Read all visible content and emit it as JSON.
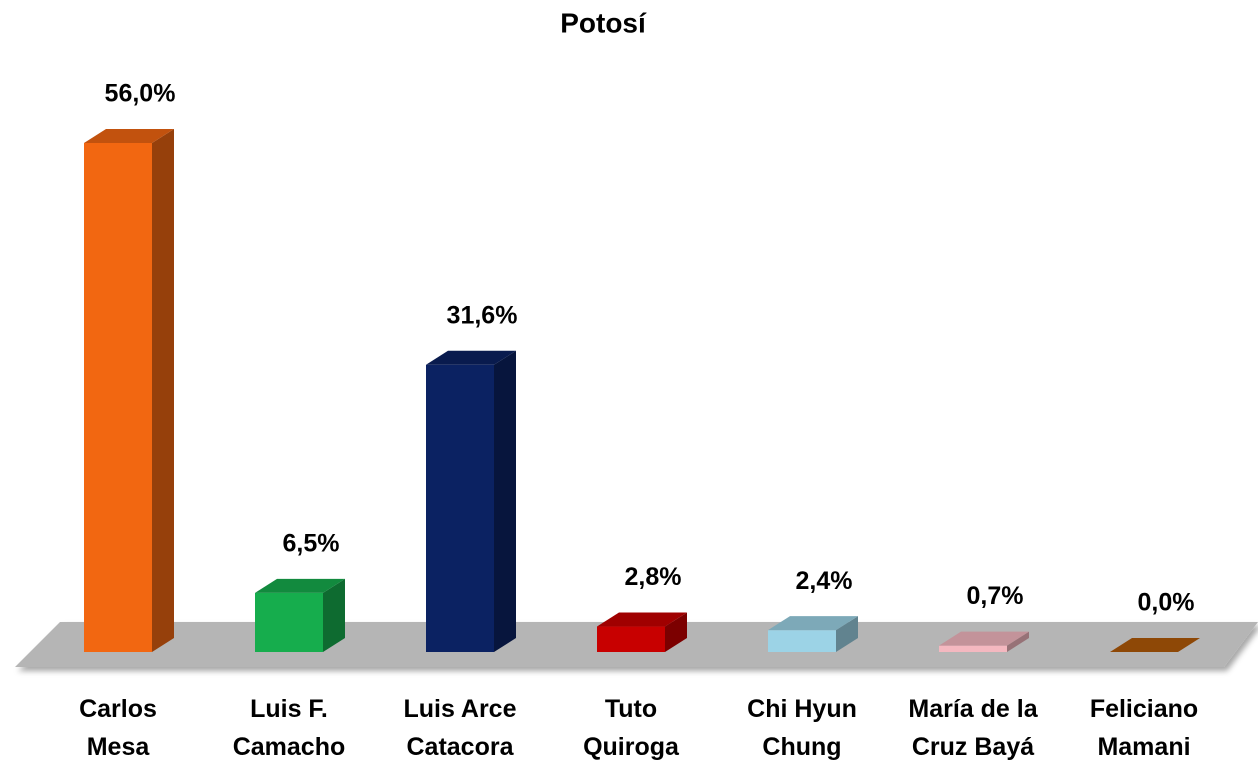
{
  "chart_data": {
    "type": "bar3d",
    "title": "Potosí",
    "categories": [
      "Carlos\nMesa",
      "Luis F.\nCamacho",
      "Luis Arce\nCatacora",
      "Tuto\nQuiroga",
      "Chi Hyun\nChung",
      "María de la\nCruz Bayá",
      "Feliciano\nMamani"
    ],
    "values": [
      56.0,
      6.5,
      31.6,
      2.8,
      2.4,
      0.7,
      0.0
    ],
    "value_labels": [
      "56,0%",
      "6,5%",
      "31,6%",
      "2,8%",
      "2,4%",
      "0,7%",
      "0,0%"
    ],
    "colors": [
      "#f26711",
      "#16ad4d",
      "#0b2262",
      "#c80000",
      "#9cd3e6",
      "#f4b8c0",
      "#b15a07"
    ]
  }
}
